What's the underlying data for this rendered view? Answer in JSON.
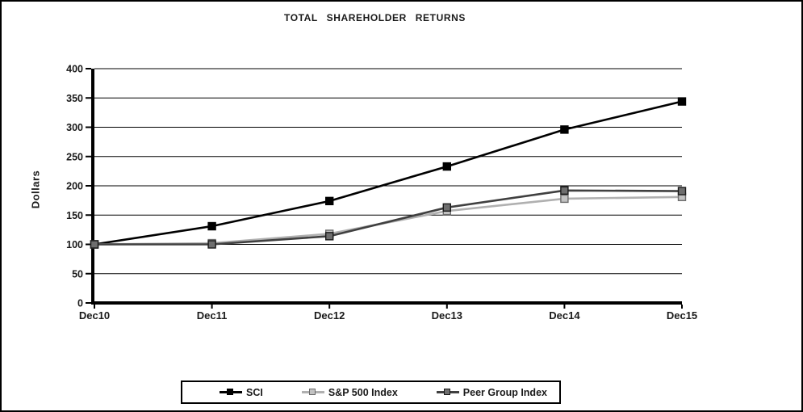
{
  "page": {
    "background": "#ffffff",
    "border_color": "#000000"
  },
  "chart_data": {
    "type": "line",
    "title": "TOTAL SHAREHOLDER RETURNS",
    "ylabel": "Dollars",
    "xlabel": "",
    "categories": [
      "Dec10",
      "Dec11",
      "Dec12",
      "Dec13",
      "Dec14",
      "Dec15"
    ],
    "series": [
      {
        "name": "SCI",
        "values": [
          100,
          131,
          174,
          233,
          296,
          344
        ],
        "color": "#000000",
        "marker_fill": "#000000",
        "marker_border": "#000000"
      },
      {
        "name": "S&P 500 Index",
        "values": [
          100,
          102,
          118,
          157,
          178,
          181
        ],
        "color": "#b0b0b0",
        "marker_fill": "#c2c2c2",
        "marker_border": "#6b6b6b"
      },
      {
        "name": "Peer Group Index",
        "values": [
          100,
          100,
          114,
          163,
          192,
          191
        ],
        "color": "#404040",
        "marker_fill": "#6e6e6e",
        "marker_border": "#1a1a1a"
      }
    ],
    "ylim": [
      0,
      400
    ],
    "ytick_step": 50,
    "grid": "horizontal",
    "gridline_color": "#000000",
    "legend_position": "bottom-boxed"
  }
}
